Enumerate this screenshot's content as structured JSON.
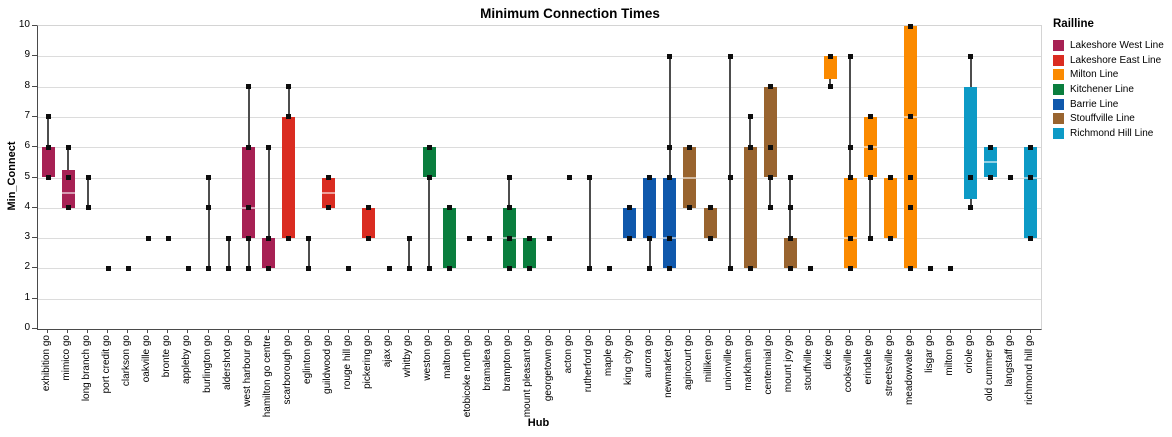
{
  "chart_data": {
    "type": "box",
    "title": "Minimum Connection Times",
    "xlabel": "Hub",
    "ylabel": "Min_Connect",
    "legend_title": "Railline",
    "ylim": [
      0,
      10
    ],
    "yticks": [
      0,
      1,
      2,
      3,
      4,
      5,
      6,
      7,
      8,
      9,
      10
    ],
    "grid": "horizontal",
    "legend_position": "right",
    "point_marker": "black-square",
    "series": [
      {
        "name": "Lakeshore West Line",
        "color": "#A72154"
      },
      {
        "name": "Lakeshore East Line",
        "color": "#DA2C21"
      },
      {
        "name": "Milton Line",
        "color": "#FB8A00"
      },
      {
        "name": "Kitchener Line",
        "color": "#0A7E3E"
      },
      {
        "name": "Barrie Line",
        "color": "#0F58AC"
      },
      {
        "name": "Stouffville Line",
        "color": "#99642F"
      },
      {
        "name": "Richmond Hill Line",
        "color": "#0D9AC6"
      }
    ],
    "hubs": [
      {
        "label": "exhibition go",
        "line": "Lakeshore West Line",
        "box": [
          5,
          6
        ],
        "median": null,
        "whiskers": [
          5,
          7
        ],
        "points": [
          5,
          6,
          7
        ]
      },
      {
        "label": "mimico go",
        "line": "Lakeshore West Line",
        "box": [
          4,
          5.25
        ],
        "median": 4.5,
        "whiskers": [
          4,
          6
        ],
        "points": [
          4,
          5,
          6
        ]
      },
      {
        "label": "long branch go",
        "line": "Lakeshore West Line",
        "box": null,
        "median": null,
        "whiskers": [
          4,
          5
        ],
        "points": [
          4,
          5
        ]
      },
      {
        "label": "port credit go",
        "line": "Lakeshore West Line",
        "box": null,
        "median": null,
        "whiskers": null,
        "points": [
          2
        ]
      },
      {
        "label": "clarkson go",
        "line": "Lakeshore West Line",
        "box": null,
        "median": null,
        "whiskers": null,
        "points": [
          2
        ]
      },
      {
        "label": "oakville go",
        "line": "Lakeshore West Line",
        "box": null,
        "median": null,
        "whiskers": null,
        "points": [
          3
        ]
      },
      {
        "label": "bronte go",
        "line": "Lakeshore West Line",
        "box": null,
        "median": null,
        "whiskers": null,
        "points": [
          3
        ]
      },
      {
        "label": "appleby go",
        "line": "Lakeshore West Line",
        "box": null,
        "median": null,
        "whiskers": null,
        "points": [
          2
        ]
      },
      {
        "label": "burlington go",
        "line": "Lakeshore West Line",
        "box": null,
        "median": null,
        "whiskers": [
          2,
          5
        ],
        "points": [
          2,
          4,
          5
        ]
      },
      {
        "label": "aldershot go",
        "line": "Lakeshore West Line",
        "box": null,
        "median": null,
        "whiskers": [
          2,
          3
        ],
        "points": [
          2,
          3
        ]
      },
      {
        "label": "west harbour go",
        "line": "Lakeshore West Line",
        "box": [
          3,
          6
        ],
        "median": 4,
        "whiskers": [
          2,
          8
        ],
        "points": [
          2,
          3,
          4,
          6,
          8
        ]
      },
      {
        "label": "hamilton go centre",
        "line": "Lakeshore West Line",
        "box": [
          2,
          3
        ],
        "median": null,
        "whiskers": [
          2,
          6
        ],
        "points": [
          2,
          3,
          6
        ]
      },
      {
        "label": "scarborough go",
        "line": "Lakeshore East Line",
        "box": [
          3,
          7
        ],
        "median": null,
        "whiskers": [
          3,
          8
        ],
        "points": [
          3,
          7,
          8
        ]
      },
      {
        "label": "eglinton go",
        "line": "Lakeshore East Line",
        "box": null,
        "median": null,
        "whiskers": [
          2,
          3
        ],
        "points": [
          2,
          3
        ]
      },
      {
        "label": "guildwood go",
        "line": "Lakeshore East Line",
        "box": [
          4,
          5
        ],
        "median": 4.5,
        "whiskers": [
          4,
          5
        ],
        "points": [
          4,
          5
        ]
      },
      {
        "label": "rouge hill go",
        "line": "Lakeshore East Line",
        "box": null,
        "median": null,
        "whiskers": null,
        "points": [
          2
        ]
      },
      {
        "label": "pickering go",
        "line": "Lakeshore East Line",
        "box": [
          3,
          4
        ],
        "median": null,
        "whiskers": [
          3,
          4
        ],
        "points": [
          3,
          4
        ]
      },
      {
        "label": "ajax go",
        "line": "Lakeshore East Line",
        "box": null,
        "median": null,
        "whiskers": null,
        "points": [
          2
        ]
      },
      {
        "label": "whitby go",
        "line": "Lakeshore East Line",
        "box": null,
        "median": null,
        "whiskers": [
          2,
          3
        ],
        "points": [
          2,
          3
        ]
      },
      {
        "label": "weston go",
        "line": "Kitchener Line",
        "box": [
          5,
          6
        ],
        "median": null,
        "whiskers": [
          2,
          6
        ],
        "points": [
          2,
          5,
          6
        ]
      },
      {
        "label": "malton go",
        "line": "Kitchener Line",
        "box": [
          2,
          4
        ],
        "median": null,
        "whiskers": [
          2,
          4
        ],
        "points": [
          2,
          4
        ]
      },
      {
        "label": "etobicoke north go",
        "line": "Kitchener Line",
        "box": null,
        "median": null,
        "whiskers": null,
        "points": [
          3
        ]
      },
      {
        "label": "bramalea go",
        "line": "Kitchener Line",
        "box": null,
        "median": null,
        "whiskers": null,
        "points": [
          3
        ]
      },
      {
        "label": "brampton go",
        "line": "Kitchener Line",
        "box": [
          2,
          4
        ],
        "median": 3,
        "whiskers": [
          2,
          5
        ],
        "points": [
          2,
          3,
          4,
          5
        ]
      },
      {
        "label": "mount pleasant go",
        "line": "Kitchener Line",
        "box": [
          2,
          3
        ],
        "median": null,
        "whiskers": [
          2,
          3
        ],
        "points": [
          2,
          3
        ]
      },
      {
        "label": "georgetown go",
        "line": "Kitchener Line",
        "box": null,
        "median": null,
        "whiskers": null,
        "points": [
          3
        ]
      },
      {
        "label": "acton go",
        "line": "Kitchener Line",
        "box": null,
        "median": null,
        "whiskers": null,
        "points": [
          5
        ]
      },
      {
        "label": "rutherford go",
        "line": "Barrie Line",
        "box": null,
        "median": null,
        "whiskers": [
          2,
          5
        ],
        "points": [
          2,
          5
        ]
      },
      {
        "label": "maple go",
        "line": "Barrie Line",
        "box": null,
        "median": null,
        "whiskers": null,
        "points": [
          2
        ]
      },
      {
        "label": "king city go",
        "line": "Barrie Line",
        "box": [
          3,
          4
        ],
        "median": null,
        "whiskers": [
          3,
          4
        ],
        "points": [
          3,
          4
        ]
      },
      {
        "label": "aurora go",
        "line": "Barrie Line",
        "box": [
          3,
          5
        ],
        "median": null,
        "whiskers": [
          2,
          5
        ],
        "points": [
          2,
          3,
          5
        ]
      },
      {
        "label": "newmarket go",
        "line": "Barrie Line",
        "box": [
          2,
          5
        ],
        "median": 3,
        "whiskers": [
          2,
          9
        ],
        "points": [
          2,
          3,
          5,
          6,
          9
        ]
      },
      {
        "label": "agincourt go",
        "line": "Stouffville Line",
        "box": [
          4,
          6
        ],
        "median": 5,
        "whiskers": [
          4,
          6
        ],
        "points": [
          4,
          6
        ]
      },
      {
        "label": "milliken go",
        "line": "Stouffville Line",
        "box": [
          3,
          4
        ],
        "median": null,
        "whiskers": [
          3,
          4
        ],
        "points": [
          3,
          4
        ]
      },
      {
        "label": "unionville go",
        "line": "Stouffville Line",
        "box": null,
        "median": null,
        "whiskers": [
          2,
          9
        ],
        "points": [
          2,
          5,
          9
        ]
      },
      {
        "label": "markham go",
        "line": "Stouffville Line",
        "box": [
          2,
          6
        ],
        "median": null,
        "whiskers": [
          2,
          7
        ],
        "points": [
          2,
          6,
          7
        ]
      },
      {
        "label": "centennial go",
        "line": "Stouffville Line",
        "box": [
          5,
          8
        ],
        "median": null,
        "whiskers": [
          4,
          8
        ],
        "points": [
          4,
          5,
          6,
          8
        ]
      },
      {
        "label": "mount joy go",
        "line": "Stouffville Line",
        "box": [
          2,
          3
        ],
        "median": null,
        "whiskers": [
          2,
          5
        ],
        "points": [
          2,
          3,
          4,
          5
        ]
      },
      {
        "label": "stouffville go",
        "line": "Stouffville Line",
        "box": null,
        "median": null,
        "whiskers": null,
        "points": [
          2
        ]
      },
      {
        "label": "dixie go",
        "line": "Milton Line",
        "box": [
          8.25,
          9
        ],
        "median": null,
        "whiskers": [
          8,
          9
        ],
        "points": [
          8,
          9
        ]
      },
      {
        "label": "cooksville go",
        "line": "Milton Line",
        "box": [
          2,
          5
        ],
        "median": 3,
        "whiskers": [
          2,
          9
        ],
        "points": [
          2,
          3,
          5,
          6,
          9
        ]
      },
      {
        "label": "erindale go",
        "line": "Milton Line",
        "box": [
          5,
          7
        ],
        "median": 6,
        "whiskers": [
          3,
          7
        ],
        "points": [
          3,
          5,
          6,
          7
        ]
      },
      {
        "label": "streetsville go",
        "line": "Milton Line",
        "box": [
          3,
          5
        ],
        "median": null,
        "whiskers": [
          3,
          5
        ],
        "points": [
          3,
          5
        ]
      },
      {
        "label": "meadowvale go",
        "line": "Milton Line",
        "box": [
          2,
          10
        ],
        "median": 7,
        "whiskers": [
          2,
          10
        ],
        "points": [
          2,
          4,
          5,
          7,
          10
        ]
      },
      {
        "label": "lisgar go",
        "line": "Milton Line",
        "box": null,
        "median": null,
        "whiskers": null,
        "points": [
          2
        ]
      },
      {
        "label": "milton go",
        "line": "Milton Line",
        "box": null,
        "median": null,
        "whiskers": null,
        "points": [
          2
        ]
      },
      {
        "label": "oriole go",
        "line": "Richmond Hill Line",
        "box": [
          4.3,
          8
        ],
        "median": null,
        "whiskers": [
          4,
          9
        ],
        "points": [
          4,
          5,
          9
        ]
      },
      {
        "label": "old cummer go",
        "line": "Richmond Hill Line",
        "box": [
          5,
          6
        ],
        "median": 5.5,
        "whiskers": [
          5,
          6
        ],
        "points": [
          5,
          6
        ]
      },
      {
        "label": "langstaff go",
        "line": "Richmond Hill Line",
        "box": null,
        "median": null,
        "whiskers": null,
        "points": [
          5
        ]
      },
      {
        "label": "richmond hill go",
        "line": "Richmond Hill Line",
        "box": [
          3,
          6
        ],
        "median": 5,
        "whiskers": [
          3,
          6
        ],
        "points": [
          3,
          5,
          6
        ]
      }
    ]
  },
  "ui_colors": {
    "grid": "#dcdcdc",
    "axis": "#4a4a4a",
    "frame": "#d4d4d4",
    "whisker": "#4d4d4d",
    "point": "#0d0d0d"
  }
}
